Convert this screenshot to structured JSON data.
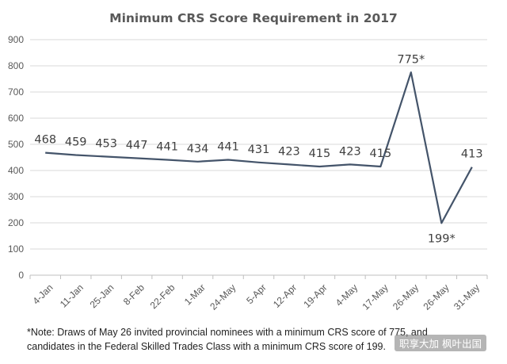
{
  "chart_data": {
    "type": "line",
    "title": "Minimum CRS Score Requirement in 2017",
    "categories": [
      "4-Jan",
      "11-Jan",
      "25-Jan",
      "8-Feb",
      "22-Feb",
      "1-Mar",
      "24-May",
      "5-Apr",
      "12-Apr",
      "19-Apr",
      "4-May",
      "17-May",
      "26-May",
      "26-May",
      "31-May"
    ],
    "values": [
      468,
      459,
      453,
      447,
      441,
      434,
      441,
      431,
      423,
      415,
      423,
      415,
      775,
      199,
      413
    ],
    "data_labels": [
      "468",
      "459",
      "453",
      "447",
      "441",
      "434",
      "441",
      "431",
      "423",
      "415",
      "423",
      "415",
      "775*",
      "",
      "413"
    ],
    "extra_labels": [
      "199*"
    ],
    "yticks": [
      "0",
      "100",
      "200",
      "300",
      "400",
      "500",
      "600",
      "700",
      "800",
      "900"
    ],
    "ylim": [
      0,
      900
    ],
    "grid": true,
    "legend": "none",
    "line_color": "#44546a",
    "grid_color": "#d9d9d9"
  },
  "footnote": {
    "line1": "*Note: Draws of May 26 invited provincial nominees with a minimum CRS score of 775, and",
    "line2": "candidates in the Federal Skilled Trades Class with a minimum CRS score of 199."
  },
  "watermark": "职享大加   枫叶出国"
}
